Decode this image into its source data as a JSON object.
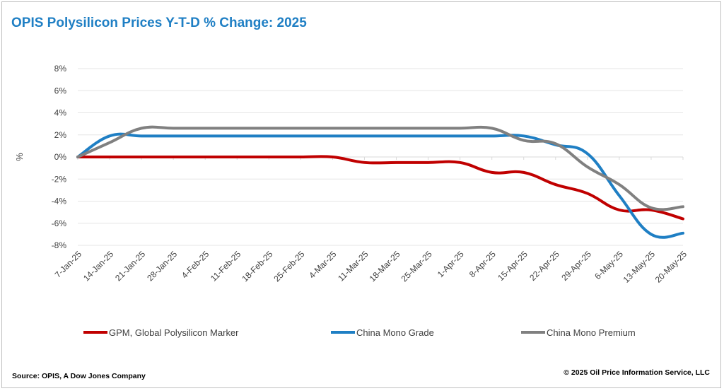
{
  "title": "OPIS Polysilicon Prices Y-T-D % Change: 2025",
  "source": "Source: OPIS, A Dow Jones Company",
  "copyright": "© 2025 Oil Price Information Service, LLC",
  "chart_data": {
    "type": "line",
    "title": "OPIS Polysilicon Prices Y-T-D % Change: 2025",
    "xlabel": "",
    "ylabel": "%",
    "ylim": [
      -8,
      8
    ],
    "yticks": [
      8,
      6,
      4,
      2,
      0,
      -2,
      -4,
      -6,
      -8
    ],
    "ytick_labels": [
      "8%",
      "6%",
      "4%",
      "2%",
      "0%",
      "-2%",
      "-4%",
      "-6%",
      "-8%"
    ],
    "grid": true,
    "legend_position": "bottom",
    "x": [
      "7-Jan-25",
      "14-Jan-25",
      "21-Jan-25",
      "28-Jan-25",
      "4-Feb-25",
      "11-Feb-25",
      "18-Feb-25",
      "25-Feb-25",
      "4-Mar-25",
      "11-Mar-25",
      "18-Mar-25",
      "25-Mar-25",
      "1-Apr-25",
      "8-Apr-25",
      "15-Apr-25",
      "22-Apr-25",
      "29-Apr-25",
      "6-May-25",
      "13-May-25",
      "20-May-25"
    ],
    "series": [
      {
        "name": "GPM, Global Polysilicon Marker",
        "color": "#c00000",
        "values": [
          0,
          0,
          0,
          0,
          0,
          0,
          0,
          0,
          0,
          -0.5,
          -0.5,
          -0.5,
          -0.5,
          -1.4,
          -1.4,
          -2.5,
          -3.3,
          -4.8,
          -4.8,
          -5.6
        ]
      },
      {
        "name": "China Mono Grade",
        "color": "#1f7fc4",
        "values": [
          0,
          1.9,
          1.9,
          1.9,
          1.9,
          1.9,
          1.9,
          1.9,
          1.9,
          1.9,
          1.9,
          1.9,
          1.9,
          1.9,
          1.9,
          1.1,
          0.3,
          -3.5,
          -7.0,
          -6.9
        ]
      },
      {
        "name": "China Mono Premium",
        "color": "#808080",
        "values": [
          0,
          1.3,
          2.6,
          2.6,
          2.6,
          2.6,
          2.6,
          2.6,
          2.6,
          2.6,
          2.6,
          2.6,
          2.6,
          2.6,
          1.5,
          1.2,
          -0.9,
          -2.5,
          -4.6,
          -4.5
        ]
      }
    ]
  }
}
